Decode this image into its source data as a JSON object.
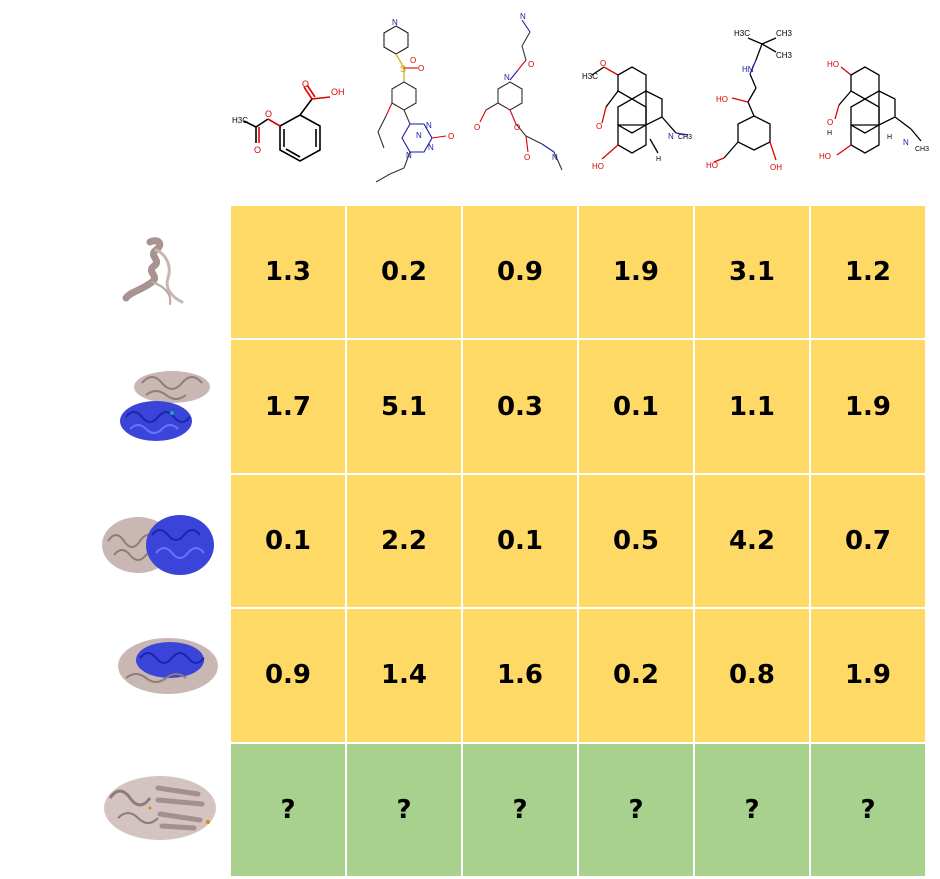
{
  "colors": {
    "known": "#FFD966",
    "unknown": "#A9D18E"
  },
  "compounds": [
    {
      "icon": "aspirin-structure",
      "labels": [
        "OH",
        "O",
        "H3C",
        "O",
        "O"
      ]
    },
    {
      "icon": "sildenafil-like-structure",
      "labels": [
        "N",
        "S",
        "O",
        "O",
        "N",
        "N",
        "O",
        "N",
        "N"
      ]
    },
    {
      "icon": "amide-acid-structure",
      "labels": [
        "N",
        "O",
        "N",
        "O",
        "O",
        "O",
        "N"
      ]
    },
    {
      "icon": "codeine-structure",
      "labels": [
        "H3C",
        "O",
        "O",
        "N",
        "CH3",
        "H",
        "HO"
      ]
    },
    {
      "icon": "salbutamol-structure",
      "labels": [
        "H3C",
        "CH3",
        "CH3",
        "HN",
        "HO",
        "HO",
        "OH"
      ]
    },
    {
      "icon": "morphine-structure",
      "labels": [
        "HO",
        "O",
        "H",
        "H",
        "N",
        "CH3",
        "HO"
      ]
    }
  ],
  "proteins": [
    {
      "icon": "small-helix-protein-structure"
    },
    {
      "icon": "two-domain-protein-structure"
    },
    {
      "icon": "large-protein-structure"
    },
    {
      "icon": "medium-protein-structure"
    },
    {
      "icon": "query-protein-structure"
    }
  ],
  "matrix": [
    [
      "1.3",
      "0.2",
      "0.9",
      "1.9",
      "3.1",
      "1.2"
    ],
    [
      "1.7",
      "5.1",
      "0.3",
      "0.1",
      "1.1",
      "1.9"
    ],
    [
      "0.1",
      "2.2",
      "0.1",
      "0.5",
      "4.2",
      "0.7"
    ],
    [
      "0.9",
      "1.4",
      "1.6",
      "0.2",
      "0.8",
      "1.9"
    ],
    [
      "?",
      "?",
      "?",
      "?",
      "?",
      "?"
    ]
  ]
}
